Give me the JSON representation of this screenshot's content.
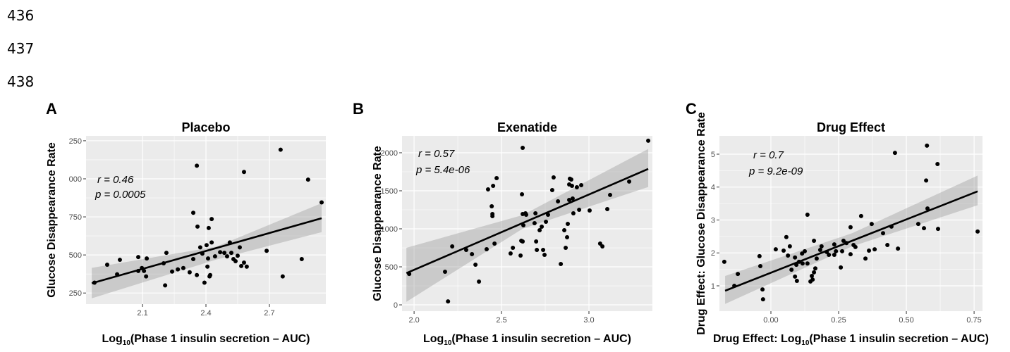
{
  "line_numbers": [
    "436",
    "437",
    "438"
  ],
  "chart_data": [
    {
      "type": "scatter",
      "panel": "A",
      "title": "Placebo",
      "x_label": [
        "Log",
        "10",
        "(Phase 1 insulin secretion – AUC)"
      ],
      "y_label": "Glucose Disappearance Rate",
      "annotations": [
        "r = 0.46",
        "p = 0.0005"
      ],
      "color": "#000000",
      "background": "#ebebeb",
      "grid": true,
      "xlim": [
        1.833,
        2.967
      ],
      "ylim": [
        177,
        1282
      ],
      "xticks": [
        2.1,
        2.4,
        2.7
      ],
      "yticks": [
        250,
        500,
        750,
        {
          "value": 1000,
          "label": "000"
        },
        {
          "value": 1250,
          "label": "250"
        }
      ],
      "x": [
        1.873,
        1.933,
        1.98,
        1.993,
        2.08,
        2.08,
        2.097,
        2.107,
        2.117,
        2.12,
        2.213,
        2.2,
        2.207,
        2.24,
        2.267,
        2.293,
        2.323,
        2.34,
        2.34,
        2.357,
        2.36,
        2.357,
        2.373,
        2.383,
        2.393,
        2.403,
        2.407,
        2.41,
        2.413,
        2.417,
        2.42,
        2.427,
        2.427,
        2.443,
        2.467,
        2.487,
        2.5,
        2.513,
        2.52,
        2.53,
        2.54,
        2.55,
        2.56,
        2.567,
        2.58,
        2.593,
        2.58,
        2.687,
        2.753,
        2.763,
        2.853,
        2.883,
        2.947
      ],
      "y": [
        318,
        436,
        373,
        468,
        486,
        395,
        414,
        395,
        359,
        477,
        514,
        445,
        300,
        391,
        405,
        414,
        386,
        473,
        777,
        368,
        686,
        1086,
        550,
        509,
        318,
        564,
        423,
        477,
        677,
        359,
        368,
        736,
        582,
        491,
        518,
        514,
        491,
        582,
        514,
        473,
        459,
        495,
        550,
        427,
        450,
        423,
        1045,
        527,
        1191,
        359,
        473,
        995,
        845
      ],
      "fit": {
        "x": [
          1.86,
          2.947
        ],
        "y": [
          314,
          741
        ]
      },
      "band": {
        "x": [
          1.86,
          2.45,
          2.947
        ],
        "lower": [
          215,
          470,
          650
        ],
        "upper": [
          415,
          555,
          840
        ]
      }
    },
    {
      "type": "scatter",
      "panel": "B",
      "title": "Exenatide",
      "x_label": [
        "Log",
        "10",
        "(Phase 1 insulin secretion – AUC)"
      ],
      "y_label": "Glucose Disappearance Rate",
      "annotations": [
        "r = 0.57",
        "p = 5.4e-06"
      ],
      "color": "#000000",
      "background": "#ebebeb",
      "grid": true,
      "xlim": [
        1.931,
        3.363
      ],
      "ylim": [
        -83,
        2222
      ],
      "xticks": [
        {
          "value": 2,
          "label": "2.0"
        },
        2.5,
        {
          "value": 3,
          "label": "3.0"
        }
      ],
      "yticks": [
        0,
        500,
        1000,
        1500,
        2000
      ],
      "x": [
        1.972,
        2.177,
        2.194,
        2.218,
        2.298,
        2.331,
        2.351,
        2.371,
        2.415,
        2.423,
        2.444,
        2.448,
        2.448,
        2.452,
        2.46,
        2.472,
        2.552,
        2.565,
        2.609,
        2.613,
        2.621,
        2.621,
        2.641,
        2.621,
        2.625,
        2.617,
        2.637,
        2.689,
        2.694,
        2.698,
        2.702,
        2.718,
        2.73,
        2.738,
        2.746,
        2.754,
        2.766,
        2.79,
        2.798,
        2.823,
        2.839,
        2.859,
        2.867,
        2.875,
        2.879,
        2.887,
        2.891,
        2.887,
        2.899,
        2.903,
        2.907,
        2.911,
        2.931,
        2.944,
        2.956,
        3.004,
        3.064,
        3.077,
        3.105,
        3.121,
        3.23,
        3.339
      ],
      "y": [
        407,
        435,
        46,
        769,
        722,
        667,
        528,
        306,
        732,
        1519,
        1296,
        1195,
        1167,
        1565,
        806,
        1667,
        676,
        750,
        648,
        843,
        2065,
        833,
        1185,
        1195,
        1046,
        1454,
        1204,
        1074,
        1204,
        833,
        722,
        982,
        1028,
        722,
        657,
        1093,
        1185,
        1509,
        1676,
        1361,
        537,
        982,
        750,
        889,
        1065,
        1380,
        1658,
        1583,
        1648,
        1565,
        1398,
        1204,
        1546,
        1250,
        1574,
        1241,
        806,
        769,
        1259,
        1445,
        1621,
        2158
      ],
      "fit": {
        "x": [
          1.956,
          3.339
        ],
        "y": [
          417,
          1787
        ]
      },
      "band": {
        "x": [
          1.956,
          2.62,
          3.339
        ],
        "lower": [
          40,
          1000,
          1550
        ],
        "upper": [
          750,
          1180,
          2050
        ]
      }
    },
    {
      "type": "scatter",
      "panel": "C",
      "title": "Drug Effect",
      "x_label": [
        "Drug Effect: Log",
        "10",
        "(Phase 1 insulin secretion – AUC)"
      ],
      "y_label": "Drug Effect: Glucose Disappearance Rate",
      "annotations": [
        "r = 0.7",
        "p = 9.2e-09"
      ],
      "color": "#000000",
      "background": "#ebebeb",
      "grid": true,
      "xlim": [
        -0.19,
        0.781
      ],
      "ylim": [
        0.23,
        5.556
      ],
      "xticks": [
        {
          "value": 0,
          "label": "0.00"
        },
        0.25,
        {
          "value": 0.5,
          "label": "0.50"
        },
        0.75
      ],
      "yticks": [
        1,
        2,
        3,
        4,
        5
      ],
      "x": [
        -0.172,
        -0.135,
        -0.122,
        -0.042,
        -0.031,
        -0.029,
        -0.039,
        0.018,
        0.047,
        0.057,
        0.063,
        0.07,
        0.076,
        0.089,
        0.089,
        0.094,
        0.096,
        0.104,
        0.115,
        0.117,
        0.125,
        0.135,
        0.135,
        0.146,
        0.151,
        0.154,
        0.159,
        0.164,
        0.159,
        0.169,
        0.182,
        0.187,
        0.206,
        0.214,
        0.234,
        0.234,
        0.24,
        0.258,
        0.263,
        0.268,
        0.279,
        0.294,
        0.294,
        0.305,
        0.312,
        0.333,
        0.349,
        0.362,
        0.372,
        0.383,
        0.414,
        0.43,
        0.445,
        0.458,
        0.469,
        0.544,
        0.565,
        0.573,
        0.576,
        0.578,
        0.615,
        0.617,
        0.763
      ],
      "y": [
        1.73,
        1.0,
        1.36,
        1.9,
        0.89,
        0.59,
        1.6,
        2.11,
        2.07,
        2.48,
        1.92,
        2.2,
        1.49,
        1.86,
        1.28,
        1.64,
        1.15,
        1.73,
        1.98,
        1.68,
        2.05,
        1.68,
        3.16,
        1.13,
        1.3,
        1.19,
        1.41,
        1.53,
        2.37,
        1.83,
        2.09,
        2.2,
        2.03,
        1.94,
        2.26,
        1.94,
        2.05,
        1.56,
        2.05,
        2.37,
        2.3,
        2.78,
        1.96,
        2.24,
        2.18,
        3.12,
        1.83,
        2.07,
        2.88,
        2.11,
        2.6,
        2.24,
        2.8,
        5.04,
        2.13,
        2.88,
        2.75,
        4.2,
        5.26,
        3.35,
        4.7,
        2.73,
        2.65
      ],
      "fit": {
        "x": [
          -0.169,
          0.763
        ],
        "y": [
          0.85,
          3.87
        ]
      },
      "band": {
        "x": [
          -0.169,
          0.3,
          0.763
        ],
        "lower": [
          0.45,
          2.2,
          3.45
        ],
        "upper": [
          1.3,
          2.6,
          4.35
        ]
      }
    }
  ]
}
